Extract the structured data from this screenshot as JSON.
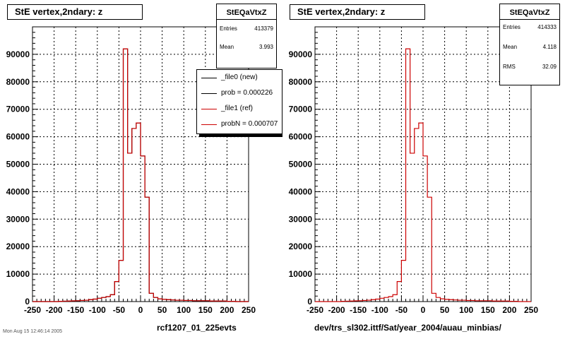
{
  "colors": {
    "new": "#000000",
    "ref": "#cc0000",
    "grid": "#000000"
  },
  "left": {
    "title": "StE  vertex,2ndary: z",
    "stats": {
      "name": "StEQaVtxZ",
      "rows": [
        {
          "label": "Entries",
          "value": "413379"
        },
        {
          "label": "Mean",
          "value": "3.993"
        }
      ]
    },
    "legend": [
      {
        "label": "_file0 (new)",
        "color": "#000000"
      },
      {
        "label": "prob = 0.000226",
        "color": "#000000"
      },
      {
        "label": "_file1 (ref)",
        "color": "#cc0000"
      },
      {
        "label": "probN = 0.000707",
        "color": "#cc0000"
      }
    ],
    "footer": "rcf1207_01_225evts"
  },
  "right": {
    "title": "StE  vertex,2ndary: z",
    "stats": {
      "name": "StEQaVtxZ",
      "rows": [
        {
          "label": "Entries",
          "value": "414333"
        },
        {
          "label": "Mean",
          "value": "4.118"
        },
        {
          "label": "RMS",
          "value": "32.09"
        }
      ]
    },
    "footer": "dev/trs_sl302.ittf/Sat/year_2004/auau_minbias/"
  },
  "timestamp": "Mon Aug 15 12:46:14 2005",
  "chart_data": [
    {
      "type": "histogram",
      "title": "StE  vertex,2ndary: z",
      "xlim": [
        -250,
        250
      ],
      "ylim": [
        0,
        100000
      ],
      "x_ticks": [
        -250,
        -200,
        -150,
        -100,
        -50,
        0,
        50,
        100,
        150,
        200,
        250
      ],
      "y_tick_labels": [
        "0",
        "10000",
        "20000",
        "30000",
        "40000",
        "50000",
        "60000",
        "70000",
        "80000",
        "90000"
      ],
      "grid": true,
      "bin_width": 10,
      "bin_edges_start": -250,
      "series": [
        {
          "name": "_file0 (new)",
          "values": [
            0,
            0,
            0,
            0,
            0,
            0,
            100,
            150,
            200,
            250,
            300,
            400,
            500,
            700,
            900,
            1200,
            1500,
            1800,
            2500,
            7300,
            15000,
            92000,
            54000,
            63000,
            65000,
            53000,
            38000,
            3000,
            1500,
            1000,
            800,
            700,
            600,
            500,
            500,
            400,
            400,
            300,
            300,
            300,
            300,
            200,
            200,
            200,
            200,
            100,
            100,
            0,
            0,
            0
          ]
        },
        {
          "name": "_file1 (ref)",
          "values": [
            0,
            0,
            0,
            0,
            0,
            0,
            100,
            150,
            200,
            250,
            300,
            400,
            500,
            700,
            900,
            1200,
            1500,
            1800,
            2500,
            7300,
            15000,
            92000,
            54000,
            63000,
            65000,
            53000,
            38000,
            3000,
            1500,
            1000,
            800,
            700,
            600,
            500,
            500,
            400,
            400,
            300,
            300,
            300,
            300,
            200,
            200,
            200,
            200,
            100,
            100,
            0,
            0,
            0
          ]
        }
      ]
    },
    {
      "type": "histogram",
      "title": "StE  vertex,2ndary: z",
      "xlim": [
        -250,
        250
      ],
      "ylim": [
        0,
        100000
      ],
      "x_ticks": [
        -250,
        -200,
        -150,
        -100,
        -50,
        0,
        50,
        100,
        150,
        200,
        250
      ],
      "y_tick_labels": [
        "0",
        "10000",
        "20000",
        "30000",
        "40000",
        "50000",
        "60000",
        "70000",
        "80000",
        "90000"
      ],
      "grid": true,
      "bin_width": 10,
      "bin_edges_start": -250,
      "series": [
        {
          "name": "StEQaVtxZ",
          "values": [
            0,
            0,
            0,
            0,
            0,
            0,
            100,
            150,
            200,
            250,
            300,
            400,
            500,
            700,
            900,
            1200,
            1500,
            1800,
            2500,
            7300,
            15000,
            92000,
            54000,
            63000,
            65000,
            53000,
            38000,
            3000,
            1500,
            1000,
            800,
            700,
            600,
            500,
            500,
            400,
            400,
            300,
            300,
            300,
            300,
            200,
            200,
            200,
            200,
            100,
            100,
            0,
            0,
            0
          ]
        }
      ]
    }
  ]
}
